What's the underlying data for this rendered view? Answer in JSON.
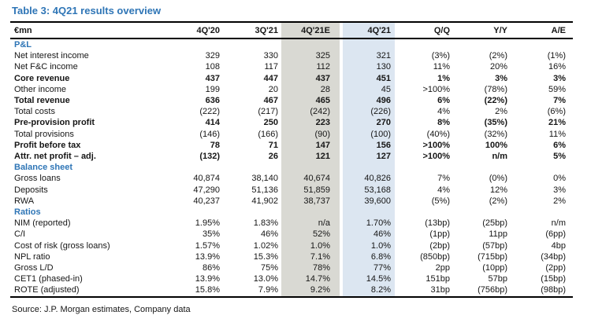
{
  "title": "Table 3: 4Q21 results overview",
  "source": "Source: J.P. Morgan estimates, Company data",
  "colors": {
    "accent_blue": "#2e75b6",
    "estimate_column_bg": "#d9d9d3",
    "actual_column_bg": "#dce6f1",
    "border_black": "#000000"
  },
  "table": {
    "columns": [
      "€mn",
      "4Q'20",
      "3Q'21",
      "4Q'21E",
      "4Q'21",
      "Q/Q",
      "Y/Y",
      "A/E"
    ],
    "rows": [
      {
        "section": "P&L"
      },
      {
        "label": "Net interest income",
        "bold": false,
        "values": [
          "329",
          "330",
          "325",
          "321",
          "(3%)",
          "(2%)",
          "(1%)"
        ]
      },
      {
        "label": "Net F&C income",
        "bold": false,
        "values": [
          "108",
          "117",
          "112",
          "130",
          "11%",
          "20%",
          "16%"
        ]
      },
      {
        "label": "Core revenue",
        "bold": true,
        "values": [
          "437",
          "447",
          "437",
          "451",
          "1%",
          "3%",
          "3%"
        ]
      },
      {
        "label": "Other income",
        "bold": false,
        "values": [
          "199",
          "20",
          "28",
          "45",
          ">100%",
          "(78%)",
          "59%"
        ]
      },
      {
        "label": "Total revenue",
        "bold": true,
        "values": [
          "636",
          "467",
          "465",
          "496",
          "6%",
          "(22%)",
          "7%"
        ]
      },
      {
        "label": "Total costs",
        "bold": false,
        "values": [
          "(222)",
          "(217)",
          "(242)",
          "(226)",
          "4%",
          "2%",
          "(6%)"
        ]
      },
      {
        "label": "Pre-provision profit",
        "bold": true,
        "values": [
          "414",
          "250",
          "223",
          "270",
          "8%",
          "(35%)",
          "21%"
        ]
      },
      {
        "label": "Total provisions",
        "bold": false,
        "values": [
          "(146)",
          "(166)",
          "(90)",
          "(100)",
          "(40%)",
          "(32%)",
          "11%"
        ]
      },
      {
        "label": "Profit before tax",
        "bold": true,
        "values": [
          "78",
          "71",
          "147",
          "156",
          ">100%",
          "100%",
          "6%"
        ]
      },
      {
        "label": "Attr. net profit – adj.",
        "bold": true,
        "values": [
          "(132)",
          "26",
          "121",
          "127",
          ">100%",
          "n/m",
          "5%"
        ]
      },
      {
        "section": "Balance sheet"
      },
      {
        "label": "Gross loans",
        "bold": false,
        "values": [
          "40,874",
          "38,140",
          "40,674",
          "40,826",
          "7%",
          "(0%)",
          "0%"
        ]
      },
      {
        "label": "Deposits",
        "bold": false,
        "values": [
          "47,290",
          "51,136",
          "51,859",
          "53,168",
          "4%",
          "12%",
          "3%"
        ]
      },
      {
        "label": "RWA",
        "bold": false,
        "values": [
          "40,237",
          "41,902",
          "38,737",
          "39,600",
          "(5%)",
          "(2%)",
          "2%"
        ]
      },
      {
        "section": "Ratios"
      },
      {
        "label": "NIM (reported)",
        "bold": false,
        "values": [
          "1.95%",
          "1.83%",
          "n/a",
          "1.70%",
          "(13bp)",
          "(25bp)",
          "n/m"
        ]
      },
      {
        "label": "C/I",
        "bold": false,
        "values": [
          "35%",
          "46%",
          "52%",
          "46%",
          "(1pp)",
          "11pp",
          "(6pp)"
        ]
      },
      {
        "label": "Cost of risk (gross loans)",
        "bold": false,
        "values": [
          "1.57%",
          "1.02%",
          "1.0%",
          "1.0%",
          "(2bp)",
          "(57bp)",
          "4bp"
        ]
      },
      {
        "label": "NPL ratio",
        "bold": false,
        "values": [
          "13.9%",
          "15.3%",
          "7.1%",
          "6.8%",
          "(850bp)",
          "(715bp)",
          "(34bp)"
        ]
      },
      {
        "label": "Gross L/D",
        "bold": false,
        "values": [
          "86%",
          "75%",
          "78%",
          "77%",
          "2pp",
          "(10pp)",
          "(2pp)"
        ]
      },
      {
        "label": "CET1 (phased-in)",
        "bold": false,
        "values": [
          "13.9%",
          "13.0%",
          "14.7%",
          "14.5%",
          "151bp",
          "57bp",
          "(15bp)"
        ]
      },
      {
        "label": "ROTE (adjusted)",
        "bold": false,
        "values": [
          "15.8%",
          "7.9%",
          "9.2%",
          "8.2%",
          "31bp",
          "(756bp)",
          "(98bp)"
        ]
      }
    ]
  }
}
